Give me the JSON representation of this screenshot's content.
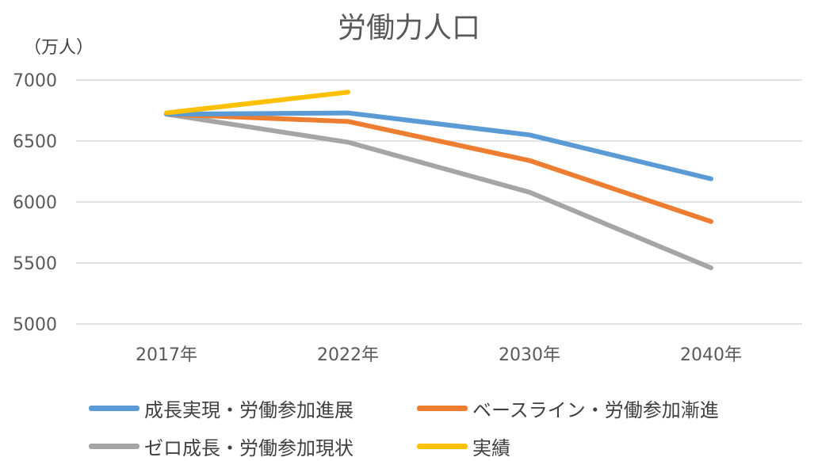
{
  "chart_data": {
    "type": "line",
    "title": "労働力人口",
    "ylabel": "（万人）",
    "xlabel": "",
    "categories": [
      "2017年",
      "2022年",
      "2030年",
      "2040年"
    ],
    "ylim": [
      5000,
      7000
    ],
    "yticks": [
      5000,
      5500,
      6000,
      6500,
      7000
    ],
    "grid": true,
    "legend_position": "bottom",
    "series": [
      {
        "name": "成長実現・労働参加進展",
        "color": "#5B9BD5",
        "values": [
          6720,
          6730,
          6550,
          6190
        ]
      },
      {
        "name": "ベースライン・労働参加漸進",
        "color": "#ED7D31",
        "values": [
          6720,
          6660,
          6340,
          5840
        ]
      },
      {
        "name": "ゼロ成長・労働参加現状",
        "color": "#A5A5A5",
        "values": [
          6720,
          6490,
          6080,
          5460
        ]
      },
      {
        "name": "実績",
        "color": "#FFC000",
        "values": [
          6730,
          6900,
          null,
          null
        ]
      }
    ]
  }
}
